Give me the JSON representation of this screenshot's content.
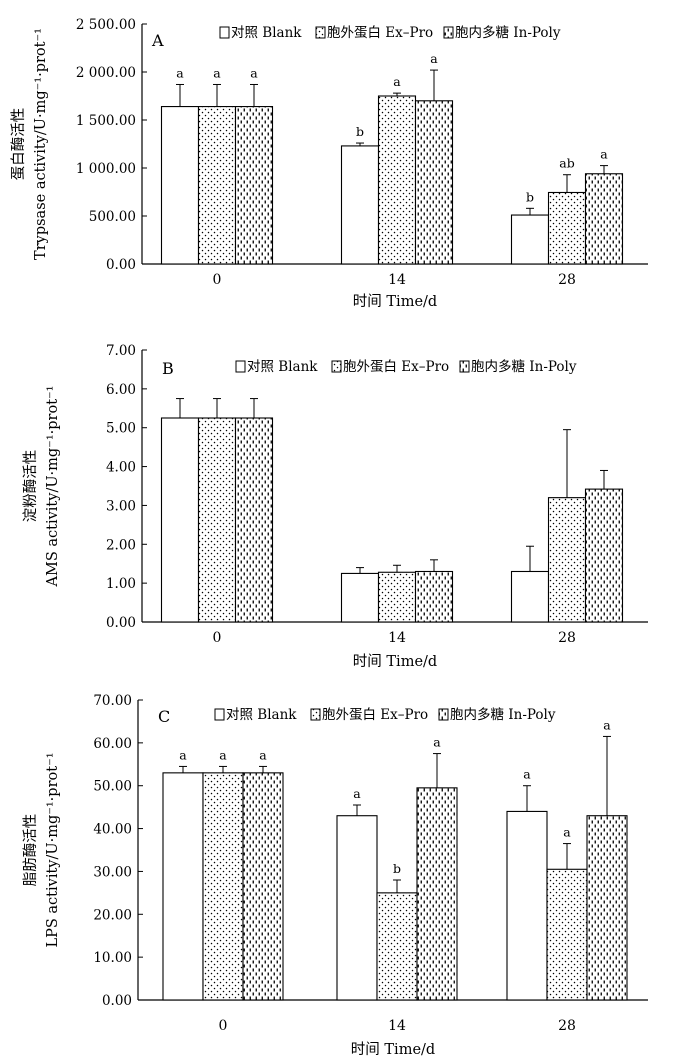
{
  "chart_data": [
    {
      "type": "bar",
      "panel_label": "A",
      "categories": [
        "0",
        "14",
        "28"
      ],
      "xlabel": "时间 Time/d",
      "ylabel_cn": "蛋白酶活性",
      "ylabel_en": "Trypsase activity/U·mg⁻¹·prot⁻¹",
      "ylim": [
        0,
        2500
      ],
      "yticks": [
        "0.00",
        "500.00",
        "1 000.00",
        "1 500.00",
        "2 000.00",
        "2 500.00"
      ],
      "legend": [
        "对照 Blank",
        "胞外蛋白 Ex–Pro",
        "胞内多糖 In-Poly"
      ],
      "series": [
        {
          "values": [
            1640,
            1230,
            510
          ],
          "errors": [
            230,
            30,
            70
          ],
          "labels": [
            "a",
            "b",
            "b"
          ]
        },
        {
          "values": [
            1640,
            1750,
            745
          ],
          "errors": [
            230,
            30,
            185
          ],
          "labels": [
            "a",
            "a",
            "ab"
          ]
        },
        {
          "values": [
            1640,
            1700,
            940
          ],
          "errors": [
            230,
            320,
            85
          ],
          "labels": [
            "a",
            "a",
            "a"
          ]
        }
      ]
    },
    {
      "type": "bar",
      "panel_label": "B",
      "categories": [
        "0",
        "14",
        "28"
      ],
      "xlabel": "时间 Time/d",
      "ylabel_cn": "淀粉酶活性",
      "ylabel_en": "AMS activity/U·mg⁻¹·prot⁻¹",
      "ylim": [
        0,
        7
      ],
      "yticks": [
        "0.00",
        "1.00",
        "2.00",
        "3.00",
        "4.00",
        "5.00",
        "6.00",
        "7.00"
      ],
      "legend": [
        "对照 Blank",
        "胞外蛋白 Ex–Pro",
        "胞内多糖 In-Poly"
      ],
      "series": [
        {
          "values": [
            5.25,
            1.25,
            1.3
          ],
          "errors": [
            0.5,
            0.15,
            0.65
          ],
          "labels": [
            "",
            "",
            ""
          ]
        },
        {
          "values": [
            5.25,
            1.28,
            3.2
          ],
          "errors": [
            0.5,
            0.18,
            1.75
          ],
          "labels": [
            "",
            "",
            ""
          ]
        },
        {
          "values": [
            5.25,
            1.3,
            3.42
          ],
          "errors": [
            0.5,
            0.3,
            0.48
          ],
          "labels": [
            "",
            "",
            ""
          ]
        }
      ]
    },
    {
      "type": "bar",
      "panel_label": "C",
      "categories": [
        "0",
        "14",
        "28"
      ],
      "xlabel": "时间 Time/d",
      "ylabel_cn": "脂肪酶活性",
      "ylabel_en": "LPS activity/U·mg⁻¹·prot⁻¹",
      "ylim": [
        0,
        70
      ],
      "yticks": [
        "0.00",
        "10.00",
        "20.00",
        "30.00",
        "40.00",
        "50.00",
        "60.00",
        "70.00"
      ],
      "legend": [
        "对照 Blank",
        "胞外蛋白 Ex–Pro",
        "胞内多糖 In-Poly"
      ],
      "series": [
        {
          "values": [
            53,
            43,
            44
          ],
          "errors": [
            1.5,
            2.5,
            6
          ],
          "labels": [
            "a",
            "a",
            "a"
          ]
        },
        {
          "values": [
            53,
            25,
            30.5
          ],
          "errors": [
            1.5,
            3,
            6
          ],
          "labels": [
            "a",
            "b",
            "a"
          ]
        },
        {
          "values": [
            53,
            49.5,
            43
          ],
          "errors": [
            1.5,
            8,
            18.5
          ],
          "labels": [
            "a",
            "a",
            "a"
          ]
        }
      ]
    }
  ]
}
